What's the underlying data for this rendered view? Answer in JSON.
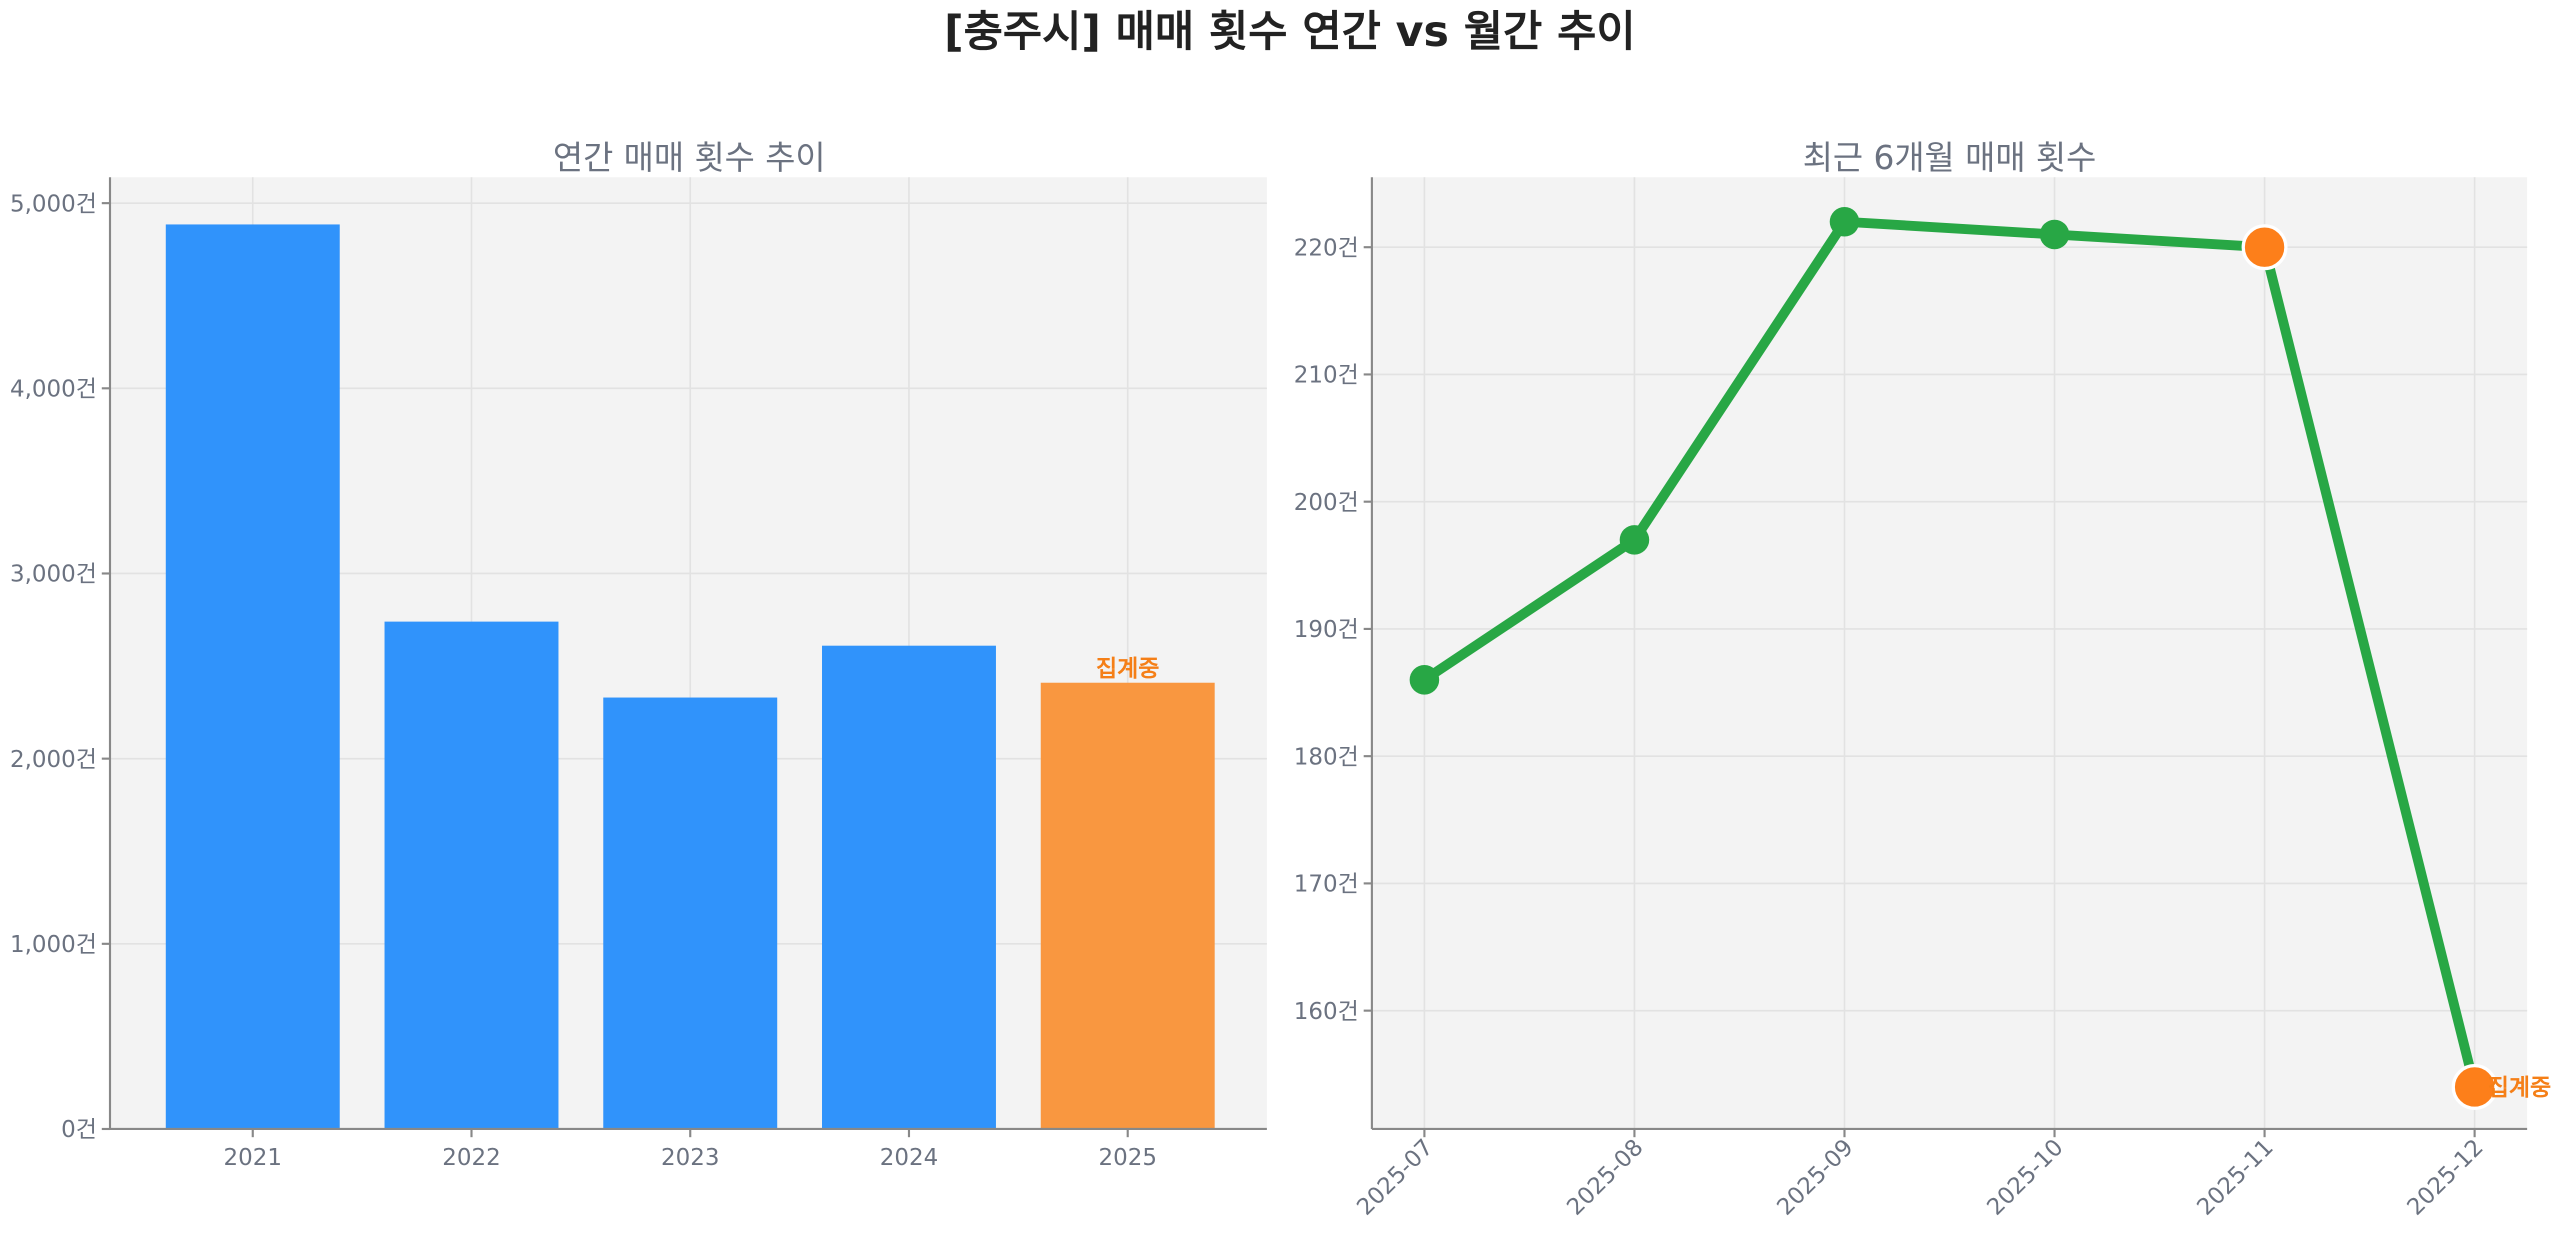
{
  "title": "[충주시] 매매 횟수 연간 vs 월간 추이",
  "chart_data": [
    {
      "type": "bar",
      "title": "연간 매매 횟수 추이",
      "categories": [
        "2021",
        "2022",
        "2023",
        "2024",
        "2025"
      ],
      "values": [
        4885,
        2740,
        2330,
        2610,
        2410
      ],
      "ylim": [
        0,
        5140
      ],
      "yticks": [
        0,
        1000,
        2000,
        3000,
        4000,
        5000
      ],
      "ytick_labels": [
        "0건",
        "1,000건",
        "2,000건",
        "3,000건",
        "4,000건",
        "5,000건"
      ],
      "grid": true,
      "colors": {
        "bar": "#3093fb",
        "highlight": "#f99740",
        "annotation": "#f57f17"
      },
      "highlight_index": 4,
      "annotation": "집계중"
    },
    {
      "type": "line",
      "title": "최근 6개월 매매 횟수",
      "categories": [
        "2025-07",
        "2025-08",
        "2025-09",
        "2025-10",
        "2025-11",
        "2025-12"
      ],
      "values": [
        186,
        197,
        222,
        221,
        220,
        154
      ],
      "ylim": [
        150.7,
        225.5
      ],
      "yticks": [
        160,
        170,
        180,
        190,
        200,
        210,
        220
      ],
      "ytick_labels": [
        "160건",
        "170건",
        "180건",
        "190건",
        "200건",
        "210건",
        "220건"
      ],
      "grid": true,
      "colors": {
        "line": "#28a745",
        "highlight": "#fd7f1a",
        "annotation": "#f57f17"
      },
      "highlight_indices": [
        4,
        5
      ],
      "annotation": "집계중"
    }
  ]
}
